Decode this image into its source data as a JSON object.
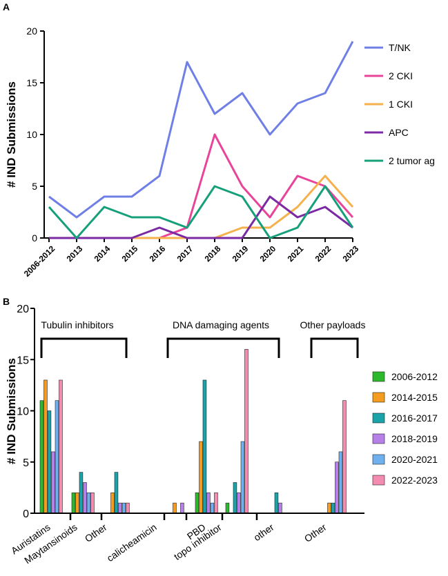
{
  "panel_labels": {
    "a": "A",
    "b": "B"
  },
  "chart_data": [
    {
      "type": "line",
      "panel": "A",
      "title": "",
      "xlabel": "",
      "ylabel": "# IND  Submissions",
      "ylim": [
        0,
        20
      ],
      "yticks": [
        "0",
        "5",
        "10",
        "15",
        "20"
      ],
      "categories": [
        "2006-2012",
        "2013",
        "2014",
        "2015",
        "2016",
        "2017",
        "2018",
        "2019",
        "2020",
        "2021",
        "2022",
        "2023"
      ],
      "series": [
        {
          "name": "T/NK",
          "color": "#6f7fe6",
          "values": [
            4,
            2,
            4,
            4,
            6,
            17,
            12,
            14,
            10,
            13,
            14,
            19
          ]
        },
        {
          "name": "2 CKI",
          "color": "#e8449a",
          "values": [
            0,
            0,
            0,
            0,
            0,
            1,
            10,
            5,
            2,
            6,
            5,
            2
          ]
        },
        {
          "name": "1 CKI",
          "color": "#f5b14d",
          "values": [
            0,
            0,
            0,
            0,
            0,
            0,
            0,
            1,
            1,
            3,
            6,
            3
          ]
        },
        {
          "name": "APC",
          "color": "#7b2aa3",
          "values": [
            0,
            0,
            0,
            0,
            1,
            0,
            0,
            0,
            4,
            2,
            3,
            1
          ]
        },
        {
          "name": "2 tumor ag",
          "color": "#16a07a",
          "values": [
            3,
            0,
            3,
            2,
            2,
            1,
            5,
            4,
            0,
            1,
            5,
            1
          ]
        }
      ],
      "legend": "right"
    },
    {
      "type": "bar",
      "panel": "B",
      "title": "",
      "xlabel": "",
      "ylabel": "# IND  Submissions",
      "ylim": [
        0,
        20
      ],
      "yticks": [
        "0",
        "5",
        "10",
        "15",
        "20"
      ],
      "categories": [
        "Auristatins",
        "Maytansinoids",
        "Other",
        "calicheamicin",
        "PBD",
        "topo inhibitor",
        "other",
        "Other"
      ],
      "groups": [
        {
          "label": "Tubulin inhibitors",
          "categories": [
            0,
            1,
            2
          ]
        },
        {
          "label": "DNA damaging agents",
          "categories": [
            3,
            4,
            5,
            6
          ]
        },
        {
          "label": "Other payloads",
          "categories": [
            7
          ]
        }
      ],
      "series": [
        {
          "name": "2006-2012",
          "color": "#2db82d",
          "values": [
            11,
            2,
            0,
            0,
            2,
            1,
            0,
            0
          ]
        },
        {
          "name": "2014-2015",
          "color": "#f39c1f",
          "values": [
            13,
            2,
            2,
            1,
            7,
            0,
            0,
            1
          ]
        },
        {
          "name": "2016-2017",
          "color": "#1aa3a8",
          "values": [
            10,
            4,
            4,
            0,
            13,
            3,
            2,
            1
          ]
        },
        {
          "name": "2018-2019",
          "color": "#b77fe8",
          "values": [
            6,
            3,
            1,
            1,
            2,
            2,
            1,
            5
          ]
        },
        {
          "name": "2020-2021",
          "color": "#6fb1ee",
          "values": [
            11,
            2,
            1,
            0,
            1,
            7,
            0,
            6
          ]
        },
        {
          "name": "2022-2023",
          "color": "#f28cb1",
          "values": [
            13,
            2,
            1,
            0,
            2,
            16,
            0,
            11
          ]
        }
      ],
      "legend": "right"
    }
  ]
}
